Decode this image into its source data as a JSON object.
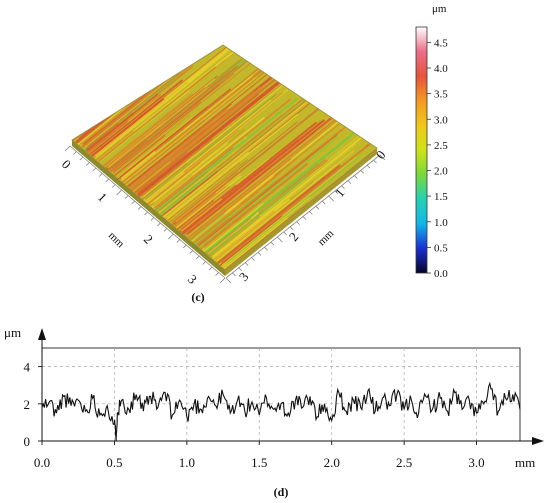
{
  "panels": {
    "c": {
      "caption": "(c)",
      "axis_unit_left": "mm",
      "axis_unit_right": "mm",
      "left_axis_ticks": [
        "0",
        "1",
        "2",
        "3"
      ],
      "right_axis_ticks": [
        "0",
        "1",
        "2",
        "3"
      ],
      "colorbar": {
        "unit": "μm",
        "ticks": [
          "0.0",
          "0.5",
          "1.0",
          "1.5",
          "2.0",
          "2.5",
          "3.0",
          "3.5",
          "4.0",
          "4.5"
        ],
        "colors": [
          "#050529",
          "#1a2fd6",
          "#10b7e8",
          "#23d2b4",
          "#79d83b",
          "#cfe317",
          "#f0c818",
          "#f29a22",
          "#e6533a",
          "#ed6d8a",
          "#ffffff"
        ]
      },
      "surface_colors": {
        "base": "#c2b82a",
        "streak_dark": "#d8832a",
        "streak_red": "#d8582d",
        "streak_green": "#78c83c",
        "streak_yellow": "#e6d12a"
      }
    },
    "d": {
      "caption": "(d)",
      "y_unit": "μm",
      "x_unit": "mm",
      "x_ticks": [
        "0.0",
        "0.5",
        "1.0",
        "1.5",
        "2.0",
        "2.5",
        "3.0"
      ],
      "y_ticks": [
        "0",
        "2",
        "4"
      ]
    }
  },
  "chart_data": [
    {
      "type": "heatmap",
      "title": "",
      "panel": "(c)",
      "description_axes": [
        "mm",
        "mm"
      ],
      "x_ticks": [
        0,
        1,
        2,
        3
      ],
      "y_ticks": [
        0,
        1,
        2,
        3
      ],
      "colorbar_range": [
        0.0,
        4.8
      ],
      "colorbar_unit": "μm",
      "dominant_height_um": [
        2.5,
        3.5
      ]
    },
    {
      "type": "line",
      "title": "",
      "panel": "(d)",
      "xlabel": "mm",
      "ylabel": "μm",
      "xlim": [
        0.0,
        3.3
      ],
      "ylim": [
        0,
        5
      ],
      "grid": true,
      "series": [
        {
          "x": [
            0.0,
            0.05,
            0.1,
            0.15,
            0.2,
            0.25,
            0.3,
            0.35,
            0.4,
            0.45,
            0.5,
            0.51,
            0.52,
            0.55,
            0.6,
            0.65,
            0.7,
            0.75,
            0.8,
            0.85,
            0.9,
            0.95,
            1.0,
            1.05,
            1.1,
            1.15,
            1.2,
            1.25,
            1.3,
            1.35,
            1.4,
            1.45,
            1.5,
            1.55,
            1.6,
            1.65,
            1.7,
            1.75,
            1.8,
            1.85,
            1.9,
            1.95,
            2.0,
            2.05,
            2.1,
            2.15,
            2.2,
            2.25,
            2.3,
            2.35,
            2.4,
            2.45,
            2.5,
            2.55,
            2.6,
            2.65,
            2.7,
            2.75,
            2.8,
            2.85,
            2.9,
            2.95,
            3.0,
            3.05,
            3.1,
            3.15,
            3.2,
            3.25,
            3.3
          ],
          "values": [
            1.8,
            2.1,
            1.5,
            2.4,
            1.9,
            2.2,
            1.6,
            2.3,
            1.4,
            1.9,
            0.9,
            0.2,
            1.5,
            2.2,
            1.7,
            2.5,
            1.6,
            2.4,
            1.8,
            2.6,
            1.4,
            2.2,
            1.3,
            2.0,
            1.7,
            2.4,
            1.9,
            2.5,
            1.5,
            2.2,
            1.6,
            2.1,
            1.4,
            2.3,
            1.7,
            2.0,
            1.5,
            2.2,
            1.8,
            2.4,
            1.3,
            2.0,
            1.1,
            2.6,
            1.6,
            2.2,
            1.8,
            2.7,
            1.6,
            2.3,
            1.9,
            2.5,
            1.7,
            2.2,
            1.5,
            2.4,
            1.8,
            2.3,
            1.6,
            2.6,
            1.7,
            2.2,
            1.5,
            2.0,
            2.8,
            1.6,
            2.3,
            2.5,
            1.7
          ]
        }
      ]
    }
  ]
}
